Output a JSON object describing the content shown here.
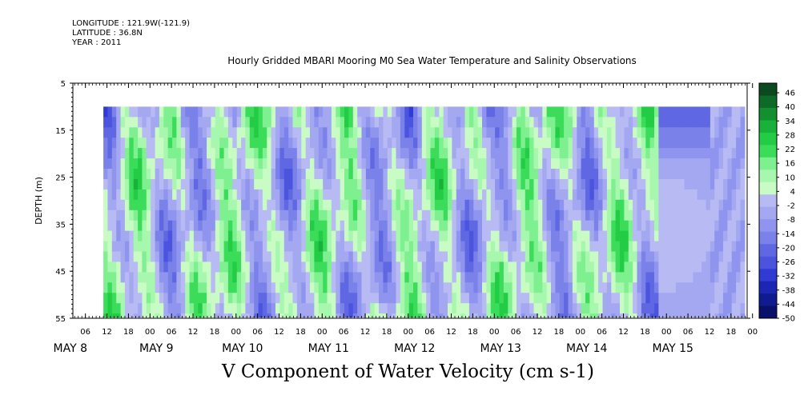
{
  "header": {
    "longitude": "LONGITUDE : 121.9W(-121.9)",
    "latitude": "LATITUDE : 36.8N",
    "year": "YEAR : 2011"
  },
  "chart_data": {
    "type": "heatmap",
    "title": "Hourly Gridded MBARI Mooring M0 Sea Water Temperature and Salinity Observations",
    "variable_label": "V Component of Water Velocity (cm s-1)",
    "ylabel": "DEPTH (m)",
    "ylim": [
      5,
      55
    ],
    "y_inverted": true,
    "y_ticks": [
      5,
      15,
      25,
      35,
      45,
      55
    ],
    "x_hour_ticks": [
      "06",
      "12",
      "18",
      "00",
      "06",
      "12",
      "18",
      "00",
      "06",
      "12",
      "18",
      "00",
      "06",
      "12",
      "18",
      "00",
      "06",
      "12",
      "18",
      "00",
      "06",
      "12",
      "18",
      "00",
      "06",
      "12",
      "18",
      "00",
      "06",
      "12",
      "18",
      "00"
    ],
    "x_day_labels": [
      "MAY  8",
      "MAY  9",
      "MAY 10",
      "MAY 11",
      "MAY 12",
      "MAY 13",
      "MAY 14",
      "MAY 15"
    ],
    "x_range_hours_from_may8_00": [
      2.5,
      190.5
    ],
    "data_start_hour": 11,
    "data_end_hour": 189,
    "data_top_depth": 10,
    "colorbar": {
      "min": -50,
      "max": 48,
      "labels": [
        "46",
        "40",
        "34",
        "28",
        "22",
        "16",
        "10",
        "4",
        "-2",
        "-8",
        "-14",
        "-20",
        "-26",
        "-32",
        "-38",
        "-44",
        "-50"
      ],
      "colors": [
        "#0b4a1e",
        "#0e6a27",
        "#12902f",
        "#18b23a",
        "#22cc44",
        "#3bdc5a",
        "#7ef090",
        "#a8f7ae",
        "#c9fbc4",
        "#b8baf3",
        "#a4a8f1",
        "#8f95ee",
        "#7a82ea",
        "#5f68e2",
        "#4a54de",
        "#2f3bd2",
        "#1c26b5",
        "#101b8f",
        "#0a0f6a"
      ]
    },
    "grid": false,
    "legend_position": "right"
  }
}
